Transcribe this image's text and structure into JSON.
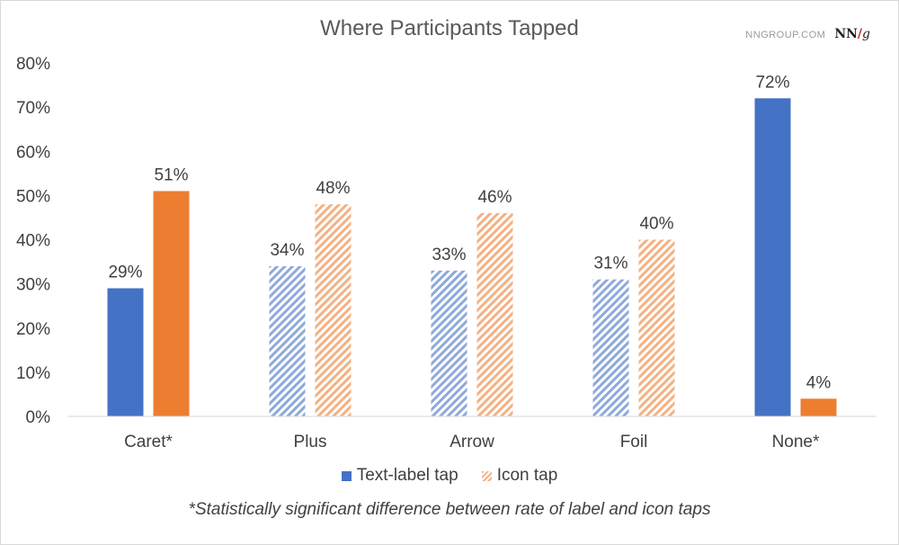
{
  "brand": {
    "site": "NNGROUP.COM",
    "logo_n1": "N",
    "logo_n2": "N",
    "logo_slash": "/",
    "logo_g": "g"
  },
  "footnote": "*Statistically significant difference between rate of label and icon taps",
  "colors": {
    "blue": "#4472c4",
    "orange": "#ed7d31",
    "blue_hatch": "#8ea9db",
    "orange_hatch": "#f4b183",
    "text": "#595959",
    "axis": "#d9d9d9"
  },
  "chart_data": {
    "type": "bar",
    "title": "Where Participants Tapped",
    "categories": [
      "Caret*",
      "Plus",
      "Arrow",
      "Foil",
      "None*"
    ],
    "series": [
      {
        "name": "Text-label tap",
        "values": [
          29,
          34,
          33,
          31,
          72
        ],
        "labels": [
          "29%",
          "34%",
          "33%",
          "31%",
          "72%"
        ]
      },
      {
        "name": "Icon tap",
        "values": [
          51,
          48,
          46,
          40,
          4
        ],
        "labels": [
          "51%",
          "48%",
          "46%",
          "40%",
          "4%"
        ]
      }
    ],
    "hatched_categories": [
      "Plus",
      "Arrow",
      "Foil"
    ],
    "ylim": [
      0,
      80
    ],
    "yticks": [
      "0%",
      "10%",
      "20%",
      "30%",
      "40%",
      "50%",
      "60%",
      "70%",
      "80%"
    ],
    "grid": false,
    "legend_position": "bottom",
    "xlabel": "",
    "ylabel": ""
  }
}
